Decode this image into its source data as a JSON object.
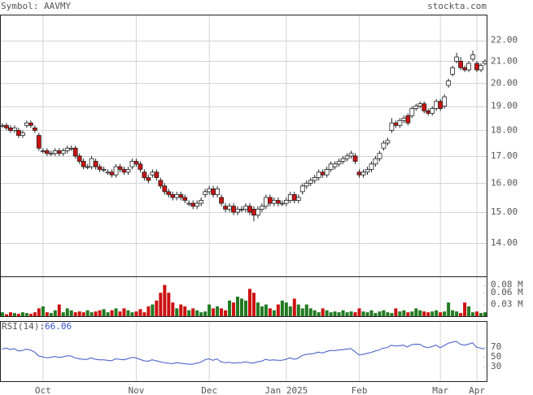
{
  "chart_data": [
    {
      "type": "candlestick",
      "title": "Symbol: AAVMY",
      "source": "stockta.com",
      "log_scale": true,
      "grid": true,
      "ylim": [
        13.0,
        23.3
      ],
      "yticks": [
        {
          "value": 14,
          "label": "14.00"
        },
        {
          "value": 15,
          "label": "15.00"
        },
        {
          "value": 16,
          "label": "16.00"
        },
        {
          "value": 17,
          "label": "17.00"
        },
        {
          "value": 18,
          "label": "18.00"
        },
        {
          "value": 19,
          "label": "19.00"
        },
        {
          "value": 20,
          "label": "20.00"
        },
        {
          "value": 21,
          "label": "21.00"
        },
        {
          "value": 22,
          "label": "22.00"
        }
      ],
      "up_color": "#ffffff",
      "down_color": "#cc1111",
      "open": [
        18.2,
        18.2,
        18.1,
        18.0,
        18.0,
        17.8,
        18.2,
        18.3,
        18.1,
        17.8,
        17.2,
        17.2,
        17.1,
        17.1,
        17.2,
        17.1,
        17.2,
        17.3,
        17.3,
        17.0,
        16.8,
        16.6,
        16.6,
        16.8,
        16.6,
        16.5,
        16.4,
        16.4,
        16.3,
        16.6,
        16.5,
        16.4,
        16.6,
        16.8,
        16.7,
        16.4,
        16.2,
        16.3,
        16.4,
        16.1,
        15.9,
        15.7,
        15.6,
        15.5,
        15.6,
        15.5,
        15.3,
        15.3,
        15.2,
        15.3,
        15.6,
        15.7,
        15.8,
        15.6,
        15.5,
        15.2,
        15.1,
        15.2,
        15.0,
        15.1,
        15.1,
        15.2,
        15.1,
        14.9,
        15.1,
        15.2,
        15.5,
        15.3,
        15.4,
        15.3,
        15.3,
        15.4,
        15.6,
        15.4,
        15.7,
        15.9,
        16.0,
        16.1,
        16.2,
        16.4,
        16.3,
        16.5,
        16.6,
        16.7,
        16.8,
        16.9,
        17.0,
        17.0,
        16.4,
        16.3,
        16.4,
        16.5,
        16.7,
        16.9,
        17.3,
        17.5,
        18.0,
        18.3,
        18.2,
        18.4,
        18.6,
        18.6,
        18.9,
        19.0,
        19.1,
        18.8,
        18.7,
        18.9,
        19.2,
        19.0,
        19.9,
        20.4,
        21.0,
        21.0,
        20.7,
        20.6,
        21.1,
        20.9,
        20.6,
        20.9
      ],
      "high": [
        18.3,
        18.3,
        18.2,
        18.2,
        18.1,
        18.0,
        18.4,
        18.4,
        18.2,
        17.9,
        17.3,
        17.3,
        17.2,
        17.3,
        17.3,
        17.3,
        17.4,
        17.4,
        17.4,
        17.1,
        16.9,
        16.7,
        17.0,
        16.9,
        16.7,
        16.6,
        16.5,
        16.5,
        16.7,
        16.7,
        16.6,
        16.6,
        16.9,
        16.9,
        16.8,
        16.5,
        16.3,
        16.5,
        16.5,
        16.2,
        16.0,
        15.8,
        15.7,
        15.7,
        15.7,
        15.6,
        15.4,
        15.4,
        15.4,
        15.5,
        15.8,
        15.9,
        15.9,
        15.9,
        15.6,
        15.3,
        15.3,
        15.3,
        15.2,
        15.2,
        15.3,
        15.3,
        15.2,
        15.2,
        15.3,
        15.6,
        15.6,
        15.5,
        15.5,
        15.4,
        15.5,
        15.7,
        15.7,
        15.6,
        16.0,
        16.1,
        16.2,
        16.3,
        16.5,
        16.5,
        16.6,
        16.8,
        16.8,
        16.9,
        17.0,
        17.1,
        17.2,
        17.1,
        16.5,
        16.5,
        16.6,
        16.8,
        17.0,
        17.2,
        17.6,
        17.7,
        18.5,
        18.4,
        18.5,
        18.6,
        18.7,
        19.0,
        19.1,
        19.2,
        19.2,
        18.9,
        19.0,
        19.3,
        19.3,
        19.5,
        20.2,
        20.8,
        21.4,
        21.2,
        20.8,
        21.0,
        21.5,
        21.0,
        20.9,
        21.1
      ],
      "low": [
        18.1,
        18.0,
        17.9,
        17.9,
        17.7,
        17.7,
        18.1,
        18.1,
        17.9,
        17.2,
        17.1,
        17.0,
        17.0,
        17.0,
        17.0,
        17.0,
        17.1,
        17.2,
        16.9,
        16.7,
        16.5,
        16.5,
        16.5,
        16.5,
        16.4,
        16.4,
        16.3,
        16.2,
        16.2,
        16.4,
        16.3,
        16.3,
        16.5,
        16.6,
        16.4,
        16.1,
        16.0,
        16.2,
        16.1,
        15.8,
        15.6,
        15.5,
        15.4,
        15.4,
        15.4,
        15.3,
        15.2,
        15.1,
        15.1,
        15.2,
        15.5,
        15.6,
        15.5,
        15.5,
        15.2,
        15.0,
        15.0,
        14.9,
        14.9,
        15.0,
        15.0,
        14.9,
        14.7,
        14.8,
        15.0,
        15.1,
        15.2,
        15.2,
        15.2,
        15.2,
        15.2,
        15.3,
        15.3,
        15.3,
        15.6,
        15.8,
        15.9,
        16.0,
        16.1,
        16.2,
        16.2,
        16.4,
        16.5,
        16.6,
        16.7,
        16.8,
        16.9,
        16.7,
        16.2,
        16.2,
        16.3,
        16.4,
        16.6,
        16.8,
        17.2,
        17.4,
        17.9,
        18.1,
        18.1,
        18.3,
        18.2,
        18.5,
        18.8,
        18.9,
        18.7,
        18.6,
        18.6,
        18.8,
        18.8,
        18.9,
        19.8,
        20.3,
        20.9,
        20.6,
        20.5,
        20.5,
        21.0,
        20.5,
        20.5,
        20.8
      ],
      "close": [
        18.2,
        18.1,
        18.0,
        18.1,
        17.8,
        17.9,
        18.3,
        18.2,
        18.0,
        17.3,
        17.2,
        17.1,
        17.1,
        17.2,
        17.1,
        17.2,
        17.3,
        17.3,
        17.0,
        16.8,
        16.6,
        16.6,
        16.9,
        16.6,
        16.5,
        16.5,
        16.4,
        16.3,
        16.6,
        16.5,
        16.4,
        16.5,
        16.8,
        16.7,
        16.5,
        16.2,
        16.1,
        16.4,
        16.2,
        15.9,
        15.7,
        15.6,
        15.5,
        15.6,
        15.5,
        15.4,
        15.3,
        15.2,
        15.3,
        15.4,
        15.7,
        15.8,
        15.6,
        15.8,
        15.3,
        15.1,
        15.2,
        15.0,
        15.1,
        15.1,
        15.2,
        15.0,
        14.9,
        15.1,
        15.2,
        15.5,
        15.3,
        15.4,
        15.3,
        15.3,
        15.4,
        15.6,
        15.4,
        15.5,
        15.9,
        16.0,
        16.1,
        16.2,
        16.4,
        16.3,
        16.5,
        16.7,
        16.7,
        16.8,
        16.9,
        17.0,
        17.1,
        16.8,
        16.3,
        16.4,
        16.5,
        16.7,
        16.9,
        17.1,
        17.5,
        17.6,
        18.3,
        18.2,
        18.4,
        18.5,
        18.3,
        18.9,
        19.0,
        19.1,
        18.8,
        18.7,
        18.9,
        19.2,
        18.9,
        19.4,
        20.1,
        20.7,
        21.2,
        20.7,
        20.6,
        20.9,
        21.3,
        20.6,
        20.8,
        21.0
      ]
    },
    {
      "type": "bar",
      "ylim": [
        0,
        0.1
      ],
      "yticks": [
        {
          "value": 0.03,
          "label": "0.03 M"
        },
        {
          "value": 0.06,
          "label": "0.06 M"
        },
        {
          "value": 0.08,
          "label": "0.08 M"
        }
      ],
      "up_color": "#227a22",
      "down_color": "#cc1111",
      "values": [
        0.01,
        0.005,
        0.01,
        0.008,
        0.006,
        0.01,
        0.008,
        0.006,
        0.01,
        0.02,
        0.025,
        0.01,
        0.008,
        0.015,
        0.03,
        0.01,
        0.02,
        0.015,
        0.01,
        0.012,
        0.01,
        0.015,
        0.01,
        0.012,
        0.015,
        0.018,
        0.01,
        0.015,
        0.02,
        0.012,
        0.02,
        0.015,
        0.01,
        0.012,
        0.018,
        0.01,
        0.025,
        0.03,
        0.04,
        0.06,
        0.08,
        0.06,
        0.035,
        0.02,
        0.03,
        0.025,
        0.015,
        0.02,
        0.015,
        0.01,
        0.012,
        0.03,
        0.02,
        0.025,
        0.02,
        0.015,
        0.04,
        0.035,
        0.05,
        0.045,
        0.04,
        0.07,
        0.06,
        0.035,
        0.025,
        0.03,
        0.02,
        0.015,
        0.03,
        0.04,
        0.035,
        0.025,
        0.045,
        0.03,
        0.02,
        0.03,
        0.02,
        0.015,
        0.01,
        0.02,
        0.015,
        0.01,
        0.012,
        0.01,
        0.015,
        0.01,
        0.012,
        0.01,
        0.02,
        0.012,
        0.01,
        0.015,
        0.008,
        0.012,
        0.015,
        0.01,
        0.008,
        0.02,
        0.012,
        0.015,
        0.01,
        0.012,
        0.02,
        0.015,
        0.012,
        0.01,
        0.012,
        0.015,
        0.01,
        0.012,
        0.035,
        0.015,
        0.012,
        0.008,
        0.035,
        0.025,
        0.01,
        0.012,
        0.008,
        0.01
      ]
    },
    {
      "type": "line",
      "label": "RSI(14):",
      "current_value": 66.06,
      "color": "#3a55c8",
      "ylim": [
        0,
        122
      ],
      "yticks": [
        30,
        50,
        70
      ],
      "xlim": [
        -0.5,
        119.5
      ],
      "xticks": [
        {
          "value": 10,
          "label": "Oct"
        },
        {
          "value": 33,
          "label": "Nov"
        },
        {
          "value": 51,
          "label": "Dec"
        },
        {
          "value": 70,
          "label": "Jan 2025"
        },
        {
          "value": 88,
          "label": "Feb"
        },
        {
          "value": 108,
          "label": "Mar"
        },
        {
          "value": 117,
          "label": "Apr"
        }
      ],
      "values": [
        66,
        68,
        65,
        67,
        62,
        63,
        66,
        64,
        60,
        52,
        50,
        48,
        49,
        51,
        49,
        50,
        52,
        52,
        48,
        46,
        45,
        45,
        48,
        45,
        44,
        44,
        43,
        42,
        46,
        45,
        44,
        46,
        49,
        48,
        45,
        42,
        41,
        44,
        42,
        40,
        38,
        37,
        36,
        38,
        37,
        36,
        35,
        35,
        37,
        39,
        44,
        46,
        43,
        46,
        40,
        38,
        39,
        37,
        38,
        38,
        40,
        38,
        37,
        40,
        41,
        45,
        43,
        44,
        43,
        43,
        45,
        48,
        45,
        47,
        53,
        55,
        56,
        57,
        60,
        58,
        61,
        63,
        63,
        64,
        65,
        66,
        67,
        61,
        54,
        55,
        57,
        59,
        62,
        64,
        68,
        69,
        74,
        72,
        73,
        74,
        70,
        75,
        76,
        76,
        71,
        69,
        71,
        74,
        69,
        73,
        78,
        80,
        82,
        76,
        74,
        76,
        79,
        70,
        68,
        66.06
      ]
    }
  ]
}
